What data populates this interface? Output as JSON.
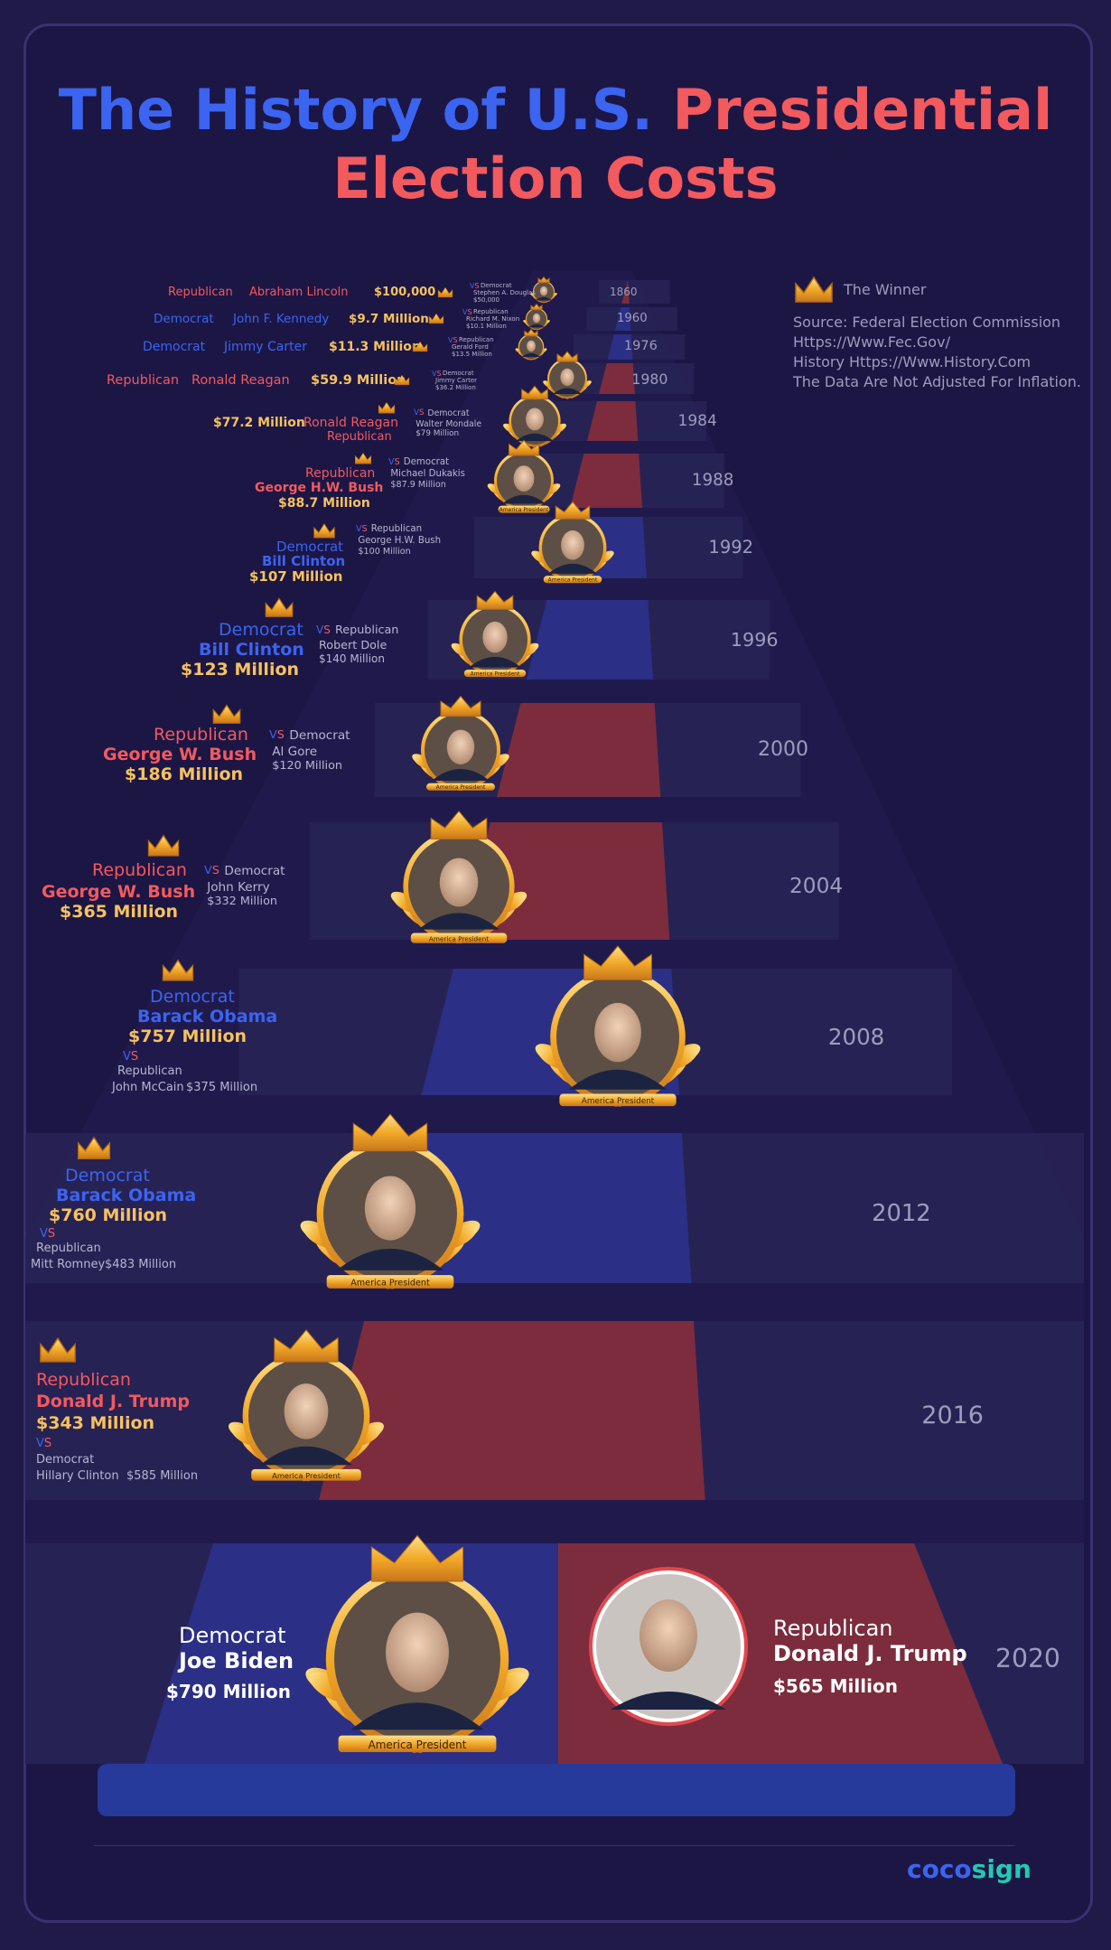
{
  "title": {
    "part1": "The History of U.S.",
    "part2": "Presidential",
    "part3": "Election Costs"
  },
  "legend": {
    "winner": "The Winner",
    "source": "Source: Federal Election Commission",
    "url1": "Https://Www.Fec.Gov/",
    "url2": "History Https://Www.History.Com",
    "note": "The Data Are Not Adjusted For Inflation."
  },
  "vs_v": "V",
  "vs_s": "S",
  "portrait_banner": "America President",
  "logo": {
    "part1": "coco",
    "part2": "sign"
  },
  "colors": {
    "democrat": "#3b64f0",
    "republican": "#f25a5e",
    "gold": "#f6c25f",
    "background": "#1c1645"
  },
  "chart_data": {
    "type": "table",
    "elections": [
      {
        "year": "1860",
        "winner_party": "Republican",
        "winner": "Abraham Lincoln",
        "winner_cost": "$100,000",
        "loser_party": "Democrat",
        "loser": "Stephen A. Douglas",
        "loser_cost": "$50,000"
      },
      {
        "year": "1960",
        "winner_party": "Democrat",
        "winner": "John F. Kennedy",
        "winner_cost": "$9.7 Million",
        "loser_party": "Republican",
        "loser": "Richard M. Nixon",
        "loser_cost": "$10.1 Million"
      },
      {
        "year": "1976",
        "winner_party": "Democrat",
        "winner": "Jimmy Carter",
        "winner_cost": "$11.3 Million",
        "loser_party": "Republican",
        "loser": "Gerald Ford",
        "loser_cost": "$13.5 Million"
      },
      {
        "year": "1980",
        "winner_party": "Republican",
        "winner": "Ronald Reagan",
        "winner_cost": "$59.9 Million",
        "loser_party": "Democrat",
        "loser": "Jimmy Carter",
        "loser_cost": "$36.2 Million"
      },
      {
        "year": "1984",
        "winner_party": "Republican",
        "winner": "Ronald Reagan",
        "winner_cost": "$77.2 Million",
        "loser_party": "Democrat",
        "loser": "Walter Mondale",
        "loser_cost": "$79 Million"
      },
      {
        "year": "1988",
        "winner_party": "Republican",
        "winner": "George H.W. Bush",
        "winner_cost": "$88.7 Million",
        "loser_party": "Democrat",
        "loser": "Michael Dukakis",
        "loser_cost": "$87.9 Million"
      },
      {
        "year": "1992",
        "winner_party": "Democrat",
        "winner": "Bill Clinton",
        "winner_cost": "$107 Million",
        "loser_party": "Republican",
        "loser": "George H.W. Bush",
        "loser_cost": "$100 Million"
      },
      {
        "year": "1996",
        "winner_party": "Democrat",
        "winner": "Bill Clinton",
        "winner_cost": "$123 Million",
        "loser_party": "Republican",
        "loser": "Robert Dole",
        "loser_cost": "$140 Million"
      },
      {
        "year": "2000",
        "winner_party": "Republican",
        "winner": "George W. Bush",
        "winner_cost": "$186 Million",
        "loser_party": "Democrat",
        "loser": "Al Gore",
        "loser_cost": "$120 Million"
      },
      {
        "year": "2004",
        "winner_party": "Republican",
        "winner": "George W. Bush",
        "winner_cost": "$365 Million",
        "loser_party": "Democrat",
        "loser": "John Kerry",
        "loser_cost": "$332 Million"
      },
      {
        "year": "2008",
        "winner_party": "Democrat",
        "winner": "Barack Obama",
        "winner_cost": "$757 Million",
        "loser_party": "Republican",
        "loser": "John McCain",
        "loser_cost": "$375 Million"
      },
      {
        "year": "2012",
        "winner_party": "Democrat",
        "winner": "Barack Obama",
        "winner_cost": "$760 Million",
        "loser_party": "Republican",
        "loser": "Mitt Romney",
        "loser_cost": "$483 Million"
      },
      {
        "year": "2016",
        "winner_party": "Republican",
        "winner": "Donald J. Trump",
        "winner_cost": "$343 Million",
        "loser_party": "Democrat",
        "loser": "Hillary Clinton",
        "loser_cost": "$585 Million"
      },
      {
        "year": "2020",
        "winner_party": "Democrat",
        "winner": "Joe Biden",
        "winner_cost": "$790 Million",
        "loser_party": "Republican",
        "loser": "Donald J. Trump",
        "loser_cost": "$565 Million"
      }
    ]
  }
}
